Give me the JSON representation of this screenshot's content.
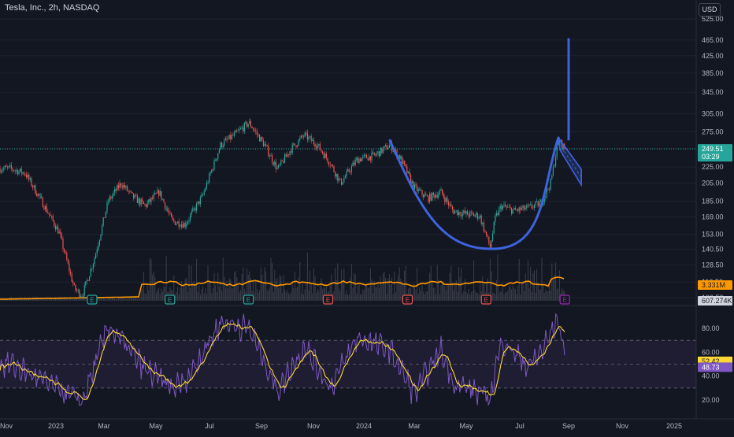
{
  "header": {
    "symbol_title": "Tesla, Inc., 2h, NASDAQ",
    "currency": "USD"
  },
  "price_scale": {
    "ticks": [
      "525.00",
      "465.00",
      "425.00",
      "385.00",
      "345.00",
      "305.00",
      "275.00",
      "250.00",
      "225.00",
      "205.00",
      "185.00",
      "169.00",
      "153.00",
      "140.50",
      "128.50",
      "116.50",
      "106.50"
    ],
    "last_price": "249.51",
    "countdown": "03:29",
    "volume_ma": "3.331M",
    "volume": "607.274K",
    "log_scale": true
  },
  "rsi_scale": {
    "ticks": [
      "80.00",
      "60.00",
      "40.00",
      "20.00"
    ],
    "rsi_value": "52.42",
    "ma_value": "48.73",
    "upper_band": 70,
    "middle": 50,
    "lower_band": 30
  },
  "time_axis": {
    "labels": [
      "Nov",
      "2023",
      "Mar",
      "May",
      "Jul",
      "Sep",
      "Nov",
      "2024",
      "Mar",
      "May",
      "Jul",
      "Sep",
      "Nov",
      "2025"
    ]
  },
  "earnings_markers": [
    {
      "label": "E",
      "color": "#26a69a",
      "date": "2023-01"
    },
    {
      "label": "E",
      "color": "#26a69a",
      "date": "2023-04"
    },
    {
      "label": "E",
      "color": "#26a69a",
      "date": "2023-07"
    },
    {
      "label": "E",
      "color": "#ef5350",
      "date": "2023-10"
    },
    {
      "label": "E",
      "color": "#ef5350",
      "date": "2024-01"
    },
    {
      "label": "E",
      "color": "#ef5350",
      "date": "2024-04"
    },
    {
      "label": "E",
      "color": "#9c27b0",
      "date": "2024-07"
    }
  ],
  "colors": {
    "background": "#131722",
    "up": "#26a69a",
    "down": "#ef5350",
    "pattern": "#3d63dd",
    "volume_ma": "#ff9800",
    "rsi": "#7e57c2",
    "rsi_ma": "#fdd835",
    "grid": "#1e222d",
    "price_line": "#26a69a"
  },
  "chart_data": [
    {
      "type": "candlestick",
      "title": "Tesla, Inc., 2h, NASDAQ",
      "x_range": [
        "2022-10",
        "2025-01"
      ],
      "ylim": [
        106.5,
        525
      ],
      "y_scale": "log",
      "price_path": [
        {
          "date": "2022-10-15",
          "close": 223
        },
        {
          "date": "2022-11-01",
          "close": 217
        },
        {
          "date": "2022-11-20",
          "close": 185
        },
        {
          "date": "2022-12-10",
          "close": 155
        },
        {
          "date": "2022-12-28",
          "close": 112
        },
        {
          "date": "2023-01-06",
          "close": 108
        },
        {
          "date": "2023-01-20",
          "close": 133
        },
        {
          "date": "2023-02-05",
          "close": 185
        },
        {
          "date": "2023-02-20",
          "close": 205
        },
        {
          "date": "2023-03-05",
          "close": 190
        },
        {
          "date": "2023-03-20",
          "close": 180
        },
        {
          "date": "2023-04-05",
          "close": 195
        },
        {
          "date": "2023-04-20",
          "close": 165
        },
        {
          "date": "2023-05-05",
          "close": 162
        },
        {
          "date": "2023-05-25",
          "close": 190
        },
        {
          "date": "2023-06-15",
          "close": 255
        },
        {
          "date": "2023-07-01",
          "close": 270
        },
        {
          "date": "2023-07-18",
          "close": 290
        },
        {
          "date": "2023-08-05",
          "close": 255
        },
        {
          "date": "2023-08-20",
          "close": 222
        },
        {
          "date": "2023-09-05",
          "close": 250
        },
        {
          "date": "2023-09-20",
          "close": 270
        },
        {
          "date": "2023-10-05",
          "close": 255
        },
        {
          "date": "2023-10-20",
          "close": 230
        },
        {
          "date": "2023-11-01",
          "close": 205
        },
        {
          "date": "2023-11-20",
          "close": 235
        },
        {
          "date": "2023-12-10",
          "close": 240
        },
        {
          "date": "2023-12-28",
          "close": 255
        },
        {
          "date": "2024-01-10",
          "close": 235
        },
        {
          "date": "2024-01-25",
          "close": 200
        },
        {
          "date": "2024-02-10",
          "close": 188
        },
        {
          "date": "2024-02-25",
          "close": 195
        },
        {
          "date": "2024-03-10",
          "close": 175
        },
        {
          "date": "2024-03-25",
          "close": 172
        },
        {
          "date": "2024-04-10",
          "close": 170
        },
        {
          "date": "2024-04-22",
          "close": 142
        },
        {
          "date": "2024-04-28",
          "close": 168
        },
        {
          "date": "2024-05-05",
          "close": 180
        },
        {
          "date": "2024-05-20",
          "close": 175
        },
        {
          "date": "2024-06-05",
          "close": 178
        },
        {
          "date": "2024-06-20",
          "close": 183
        },
        {
          "date": "2024-07-01",
          "close": 205
        },
        {
          "date": "2024-07-10",
          "close": 262
        },
        {
          "date": "2024-07-18",
          "close": 249.51
        }
      ],
      "last_close": 249.51
    },
    {
      "type": "bar",
      "title": "Volume",
      "volume_ma_last": "3.331M",
      "volume_last": "607.274K"
    },
    {
      "type": "line",
      "title": "RSI",
      "ylim": [
        10,
        95
      ],
      "series": [
        {
          "values_path": [
            {
              "date": "2022-10-15",
              "v": 50
            },
            {
              "date": "2022-12-28",
              "v": 22
            },
            {
              "date": "2023-01-06",
              "v": 18
            },
            {
              "date": "2023-02-05",
              "v": 82
            },
            {
              "date": "2023-02-20",
              "v": 70
            },
            {
              "date": "2023-03-20",
              "v": 45
            },
            {
              "date": "2023-04-20",
              "v": 30
            },
            {
              "date": "2023-05-05",
              "v": 35
            },
            {
              "date": "2023-06-15",
              "v": 85
            },
            {
              "date": "2023-07-18",
              "v": 80
            },
            {
              "date": "2023-08-20",
              "v": 28
            },
            {
              "date": "2023-09-20",
              "v": 65
            },
            {
              "date": "2023-10-20",
              "v": 30
            },
            {
              "date": "2023-11-20",
              "v": 72
            },
            {
              "date": "2023-12-28",
              "v": 62
            },
            {
              "date": "2024-01-25",
              "v": 25
            },
            {
              "date": "2024-02-25",
              "v": 62
            },
            {
              "date": "2024-03-10",
              "v": 35
            },
            {
              "date": "2024-04-22",
              "v": 22
            },
            {
              "date": "2024-05-05",
              "v": 70
            },
            {
              "date": "2024-06-05",
              "v": 48
            },
            {
              "date": "2024-06-20",
              "v": 60
            },
            {
              "date": "2024-07-10",
              "v": 88
            },
            {
              "date": "2024-07-18",
              "v": 52.42
            }
          ]
        },
        {
          "last": 48.73
        }
      ]
    }
  ]
}
